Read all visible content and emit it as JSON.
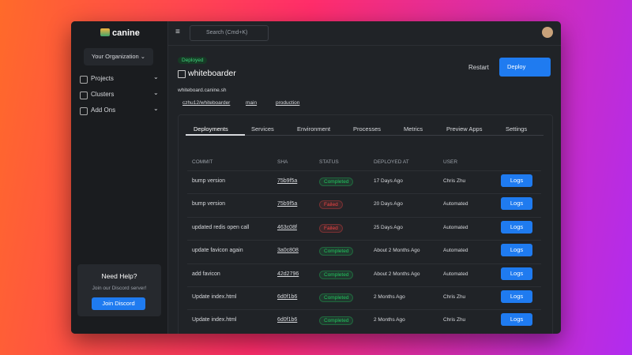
{
  "sidebar": {
    "logo": "canine",
    "organization": "Your Organization",
    "nav": [
      "Projects",
      "Clusters",
      "Add Ons"
    ],
    "help": {
      "title": "Need Help?",
      "text": "Join our Discord server!",
      "button": "Join Discord"
    }
  },
  "topbar": {
    "search": "Search (Cmd+K)"
  },
  "project": {
    "badge": "Deployed",
    "name": "whiteboarder",
    "url": "whiteboard.canine.sh",
    "repo": "czhu12/whiteboarder",
    "branch": "main",
    "environment": "production",
    "actions": [
      "Restart",
      "Deploy"
    ]
  },
  "tabs": [
    "Deployments",
    "Services",
    "Environment",
    "Processes",
    "Metrics",
    "Preview Apps",
    "Settings"
  ],
  "table": {
    "columns": [
      "COMMIT",
      "SHA",
      "STATUS",
      "DEPLOYED AT",
      "USER"
    ],
    "rows": [
      {
        "commit": "bump version",
        "sha": "75b9f5a",
        "status": "Completed",
        "status_color": "#22c55e",
        "deployed_at": "17 Days Ago",
        "user": "Chris Zhu",
        "action": "Logs"
      },
      {
        "commit": "bump version",
        "sha": "75b9f5a",
        "status": "Failed",
        "status_color": "#ef4444",
        "deployed_at": "20 Days Ago",
        "user": "Automated",
        "action": "Logs"
      },
      {
        "commit": "updated redis open call",
        "sha": "463c08f",
        "status": "Failed",
        "status_color": "#ef4444",
        "deployed_at": "25 Days Ago",
        "user": "Automated",
        "action": "Logs"
      },
      {
        "commit": "update favicon again",
        "sha": "3a0c808",
        "status": "Completed",
        "status_color": "#22c55e",
        "deployed_at": "About 2 Months Ago",
        "user": "Automated",
        "action": "Logs"
      },
      {
        "commit": "add favicon",
        "sha": "42d2796",
        "status": "Completed",
        "status_color": "#22c55e",
        "deployed_at": "About 2 Months Ago",
        "user": "Automated",
        "action": "Logs"
      },
      {
        "commit": "Update index.html",
        "sha": "6d0f1b6",
        "status": "Completed",
        "status_color": "#22c55e",
        "deployed_at": "2 Months Ago",
        "user": "Chris Zhu",
        "action": "Logs"
      },
      {
        "commit": "Update index.html",
        "sha": "6d0f1b6",
        "status": "Completed",
        "status_color": "#22c55e",
        "deployed_at": "2 Months Ago",
        "user": "Chris Zhu",
        "action": "Logs"
      }
    ]
  }
}
